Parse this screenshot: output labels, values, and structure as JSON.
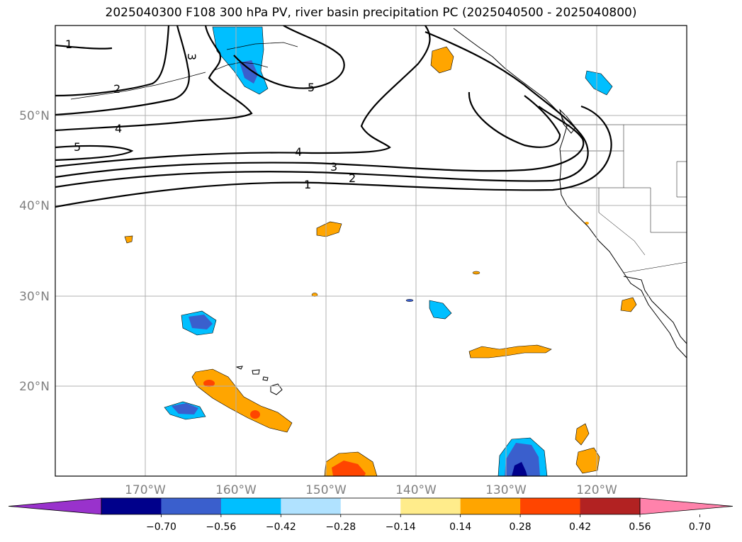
{
  "title": "2025040300 F108 300 hPa PV, river basin precipitation PC (2025040500 - 2025040800)",
  "map": {
    "lon_labels": [
      "170°W",
      "160°W",
      "150°W",
      "140°W",
      "130°W",
      "120°W"
    ],
    "lat_labels": [
      "50°N",
      "40°N",
      "30°N",
      "20°N"
    ],
    "pv_contour_labels": [
      "1",
      "2",
      "3",
      "4",
      "5",
      "5",
      "4",
      "3",
      "2",
      "1"
    ]
  },
  "colorbar": {
    "ticks": [
      "−0.70",
      "−0.56",
      "−0.42",
      "−0.28",
      "−0.14",
      "0.14",
      "0.28",
      "0.42",
      "0.56",
      "0.70"
    ],
    "colors": [
      "#9932CC",
      "#00008B",
      "#3A5FCD",
      "#00BFFF",
      "#B0E2FF",
      "#FFFFFF",
      "#FFEC8B",
      "#FFA500",
      "#FF4500",
      "#B22222",
      "#FF82AB"
    ]
  },
  "colors": {
    "strong_neg": "#00008B",
    "mid_neg": "#3A5FCD",
    "neg": "#00BFFF",
    "weak_neg": "#B0E2FF",
    "weak_pos": "#FFEC8B",
    "pos": "#FFA500",
    "mid_pos": "#FF4500"
  }
}
